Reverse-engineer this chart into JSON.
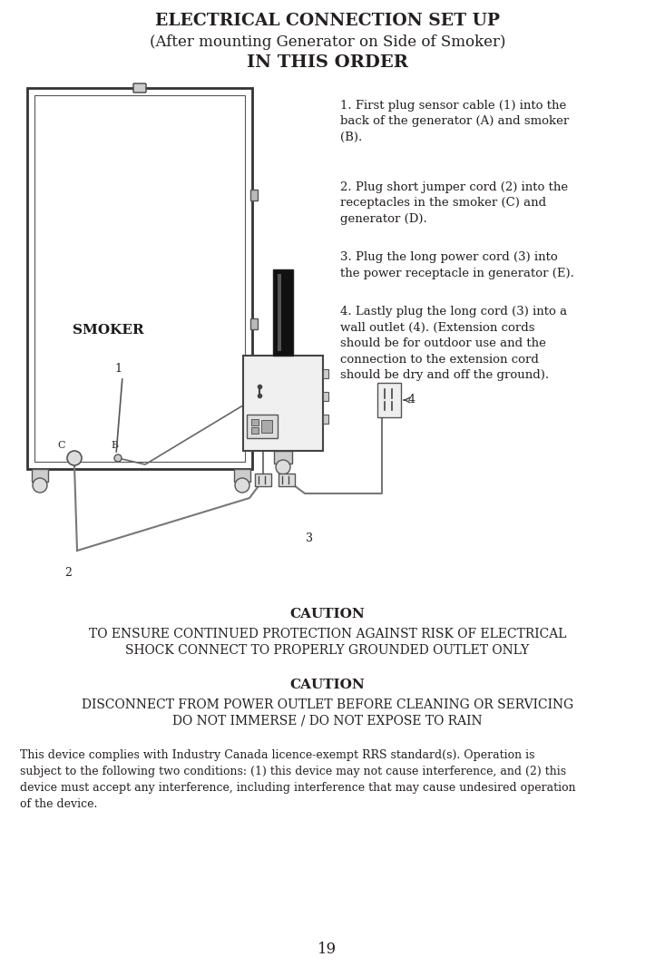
{
  "title1": "ELECTRICAL CONNECTION SET UP",
  "title2": "(After mounting Generator on Side of Smoker)",
  "title3": "IN THIS ORDER",
  "step1": "1. First plug sensor cable (1) into the\nback of the generator (A) and smoker\n(B).",
  "step2": "2. Plug short jumper cord (2) into the\nreceptacles in the smoker (C) and\ngenerator (D).",
  "step3": "3. Plug the long power cord (3) into\nthe power receptacle in generator (E).",
  "step4": "4. Lastly plug the long cord (3) into a\nwall outlet (4). (Extension cords\nshould be for outdoor use and the\nconnection to the extension cord\nshould be dry and off the ground).",
  "caution1_title": "CAUTION",
  "caution1_text1": "TO ENSURE CONTINUED PROTECTION AGAINST RISK OF ELECTRICAL",
  "caution1_text2": "SHOCK CONNECT TO PROPERLY GROUNDED OUTLET ONLY",
  "caution2_title": "CAUTION",
  "caution2_text1": "DISCONNECT FROM POWER OUTLET BEFORE CLEANING OR SERVICING",
  "caution2_text2": "DO NOT IMMERSE / DO NOT EXPOSE TO RAIN",
  "canada_text": "This device complies with Industry Canada licence-exempt RRS standard(s). Operation is\nsubject to the following two conditions: (1) this device may not cause interference, and (2) this\ndevice must accept any interference, including interference that may cause undesired operation\nof the device.",
  "page_number": "19",
  "bg_color": "#ffffff",
  "text_color": "#231f20",
  "diagram_color": "#555555"
}
